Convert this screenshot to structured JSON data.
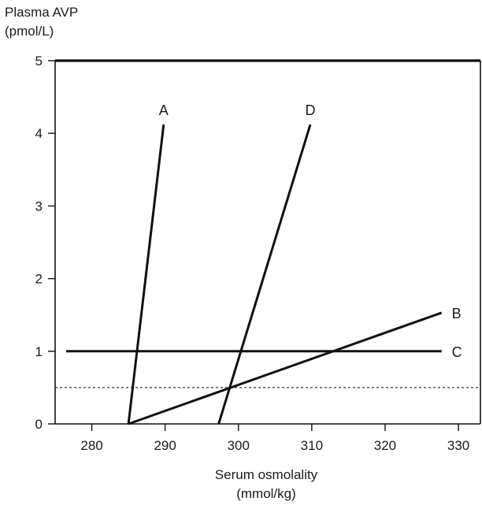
{
  "chart_data": {
    "type": "line",
    "ylabel": [
      "Plasma AVP",
      "(pmol/L)"
    ],
    "xlabel": [
      "Serum osmolality",
      "(mmol/kg)"
    ],
    "xlim": [
      275,
      333
    ],
    "ylim": [
      0,
      5
    ],
    "x_ticks": [
      280,
      290,
      300,
      310,
      320,
      330
    ],
    "y_ticks": [
      0,
      1,
      2,
      3,
      4,
      5
    ],
    "grid": false,
    "reference_line": {
      "y": 0.5,
      "style": "dashed"
    },
    "series": [
      {
        "name": "A",
        "points": [
          [
            285,
            0
          ],
          [
            289.8,
            4.12
          ]
        ]
      },
      {
        "name": "D",
        "points": [
          [
            297.3,
            0
          ],
          [
            309.8,
            4.12
          ]
        ]
      },
      {
        "name": "B",
        "points": [
          [
            285,
            0
          ],
          [
            327.7,
            1.53
          ]
        ]
      },
      {
        "name": "C",
        "points": [
          [
            276.5,
            1.0
          ],
          [
            327.7,
            1.0
          ]
        ]
      }
    ],
    "series_label_positions": [
      {
        "name": "A",
        "at": [
          289.8,
          4.12
        ],
        "place": "above"
      },
      {
        "name": "D",
        "at": [
          309.8,
          4.12
        ],
        "place": "above"
      },
      {
        "name": "B",
        "at": [
          327.7,
          1.53
        ],
        "place": "right"
      },
      {
        "name": "C",
        "at": [
          327.7,
          1.0
        ],
        "place": "right"
      }
    ]
  }
}
